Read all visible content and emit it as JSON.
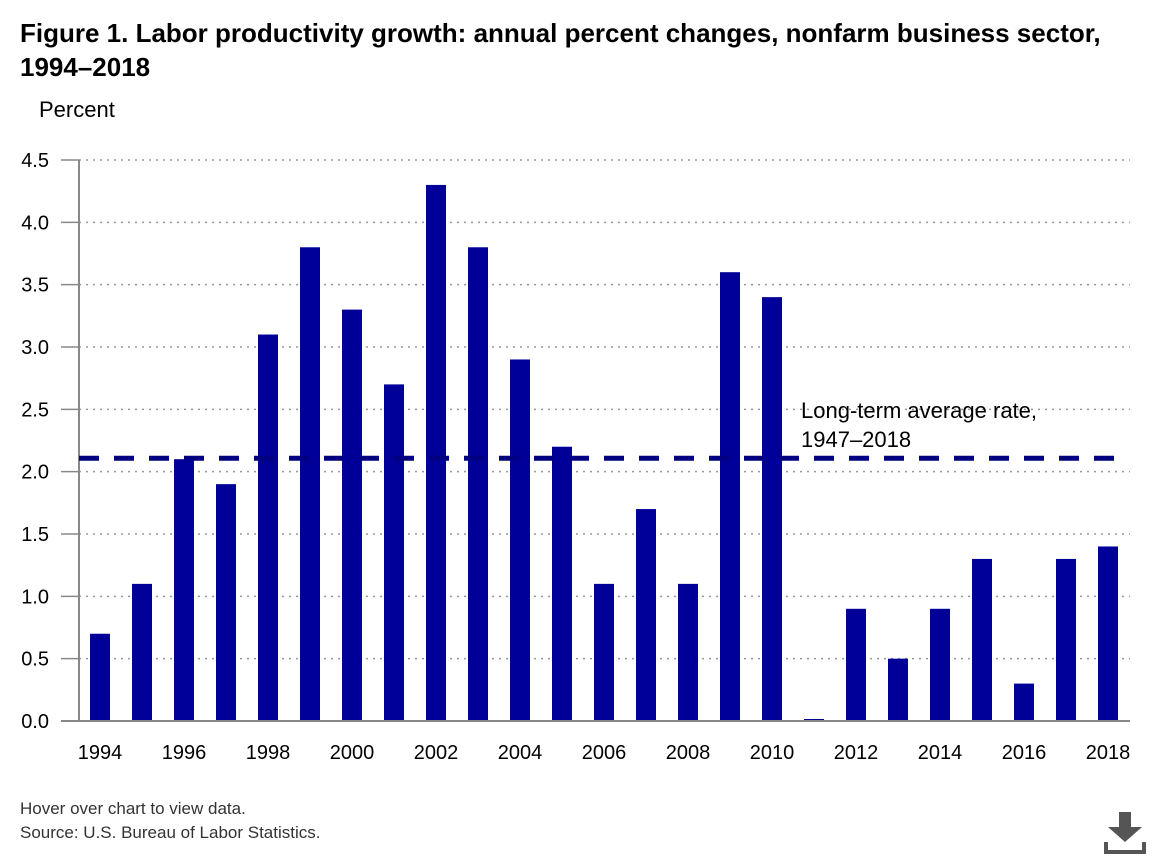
{
  "title": "Figure 1. Labor productivity growth: annual percent changes, nonfarm business sector, 1994–2018",
  "footer": {
    "note": "Hover over chart to view data.",
    "source": "Source: U.S. Bureau of Labor Statistics."
  },
  "icons": {
    "download": "download-icon"
  },
  "chart_data": {
    "type": "bar",
    "title": "Figure 1. Labor productivity growth: annual percent changes, nonfarm business sector, 1994–2018",
    "ylabel": "Percent",
    "xlabel": "",
    "categories": [
      "1994",
      "1995",
      "1996",
      "1997",
      "1998",
      "1999",
      "2000",
      "2001",
      "2002",
      "2003",
      "2004",
      "2005",
      "2006",
      "2007",
      "2008",
      "2009",
      "2010",
      "2011",
      "2012",
      "2013",
      "2014",
      "2015",
      "2016",
      "2017",
      "2018"
    ],
    "values": [
      0.7,
      1.1,
      2.1,
      1.9,
      3.1,
      3.8,
      3.3,
      2.7,
      4.3,
      3.8,
      2.9,
      2.2,
      1.1,
      1.7,
      1.1,
      3.6,
      3.4,
      0.0,
      0.9,
      0.5,
      0.9,
      1.3,
      0.3,
      1.3,
      1.4
    ],
    "x_tick_labels": [
      "1994",
      "1996",
      "1998",
      "2000",
      "2002",
      "2004",
      "2006",
      "2008",
      "2010",
      "2012",
      "2014",
      "2016",
      "2018"
    ],
    "y_tick_labels": [
      "0.0",
      "0.5",
      "1.0",
      "1.5",
      "2.0",
      "2.5",
      "3.0",
      "3.5",
      "4.0",
      "4.5"
    ],
    "ylim": [
      0,
      4.5
    ],
    "grid": true,
    "bar_color": "#000099",
    "reference_line": {
      "value": 2.1,
      "label": [
        "Long-term average rate,",
        "1947–2018"
      ],
      "style": "dashed",
      "color": "#000080"
    }
  }
}
